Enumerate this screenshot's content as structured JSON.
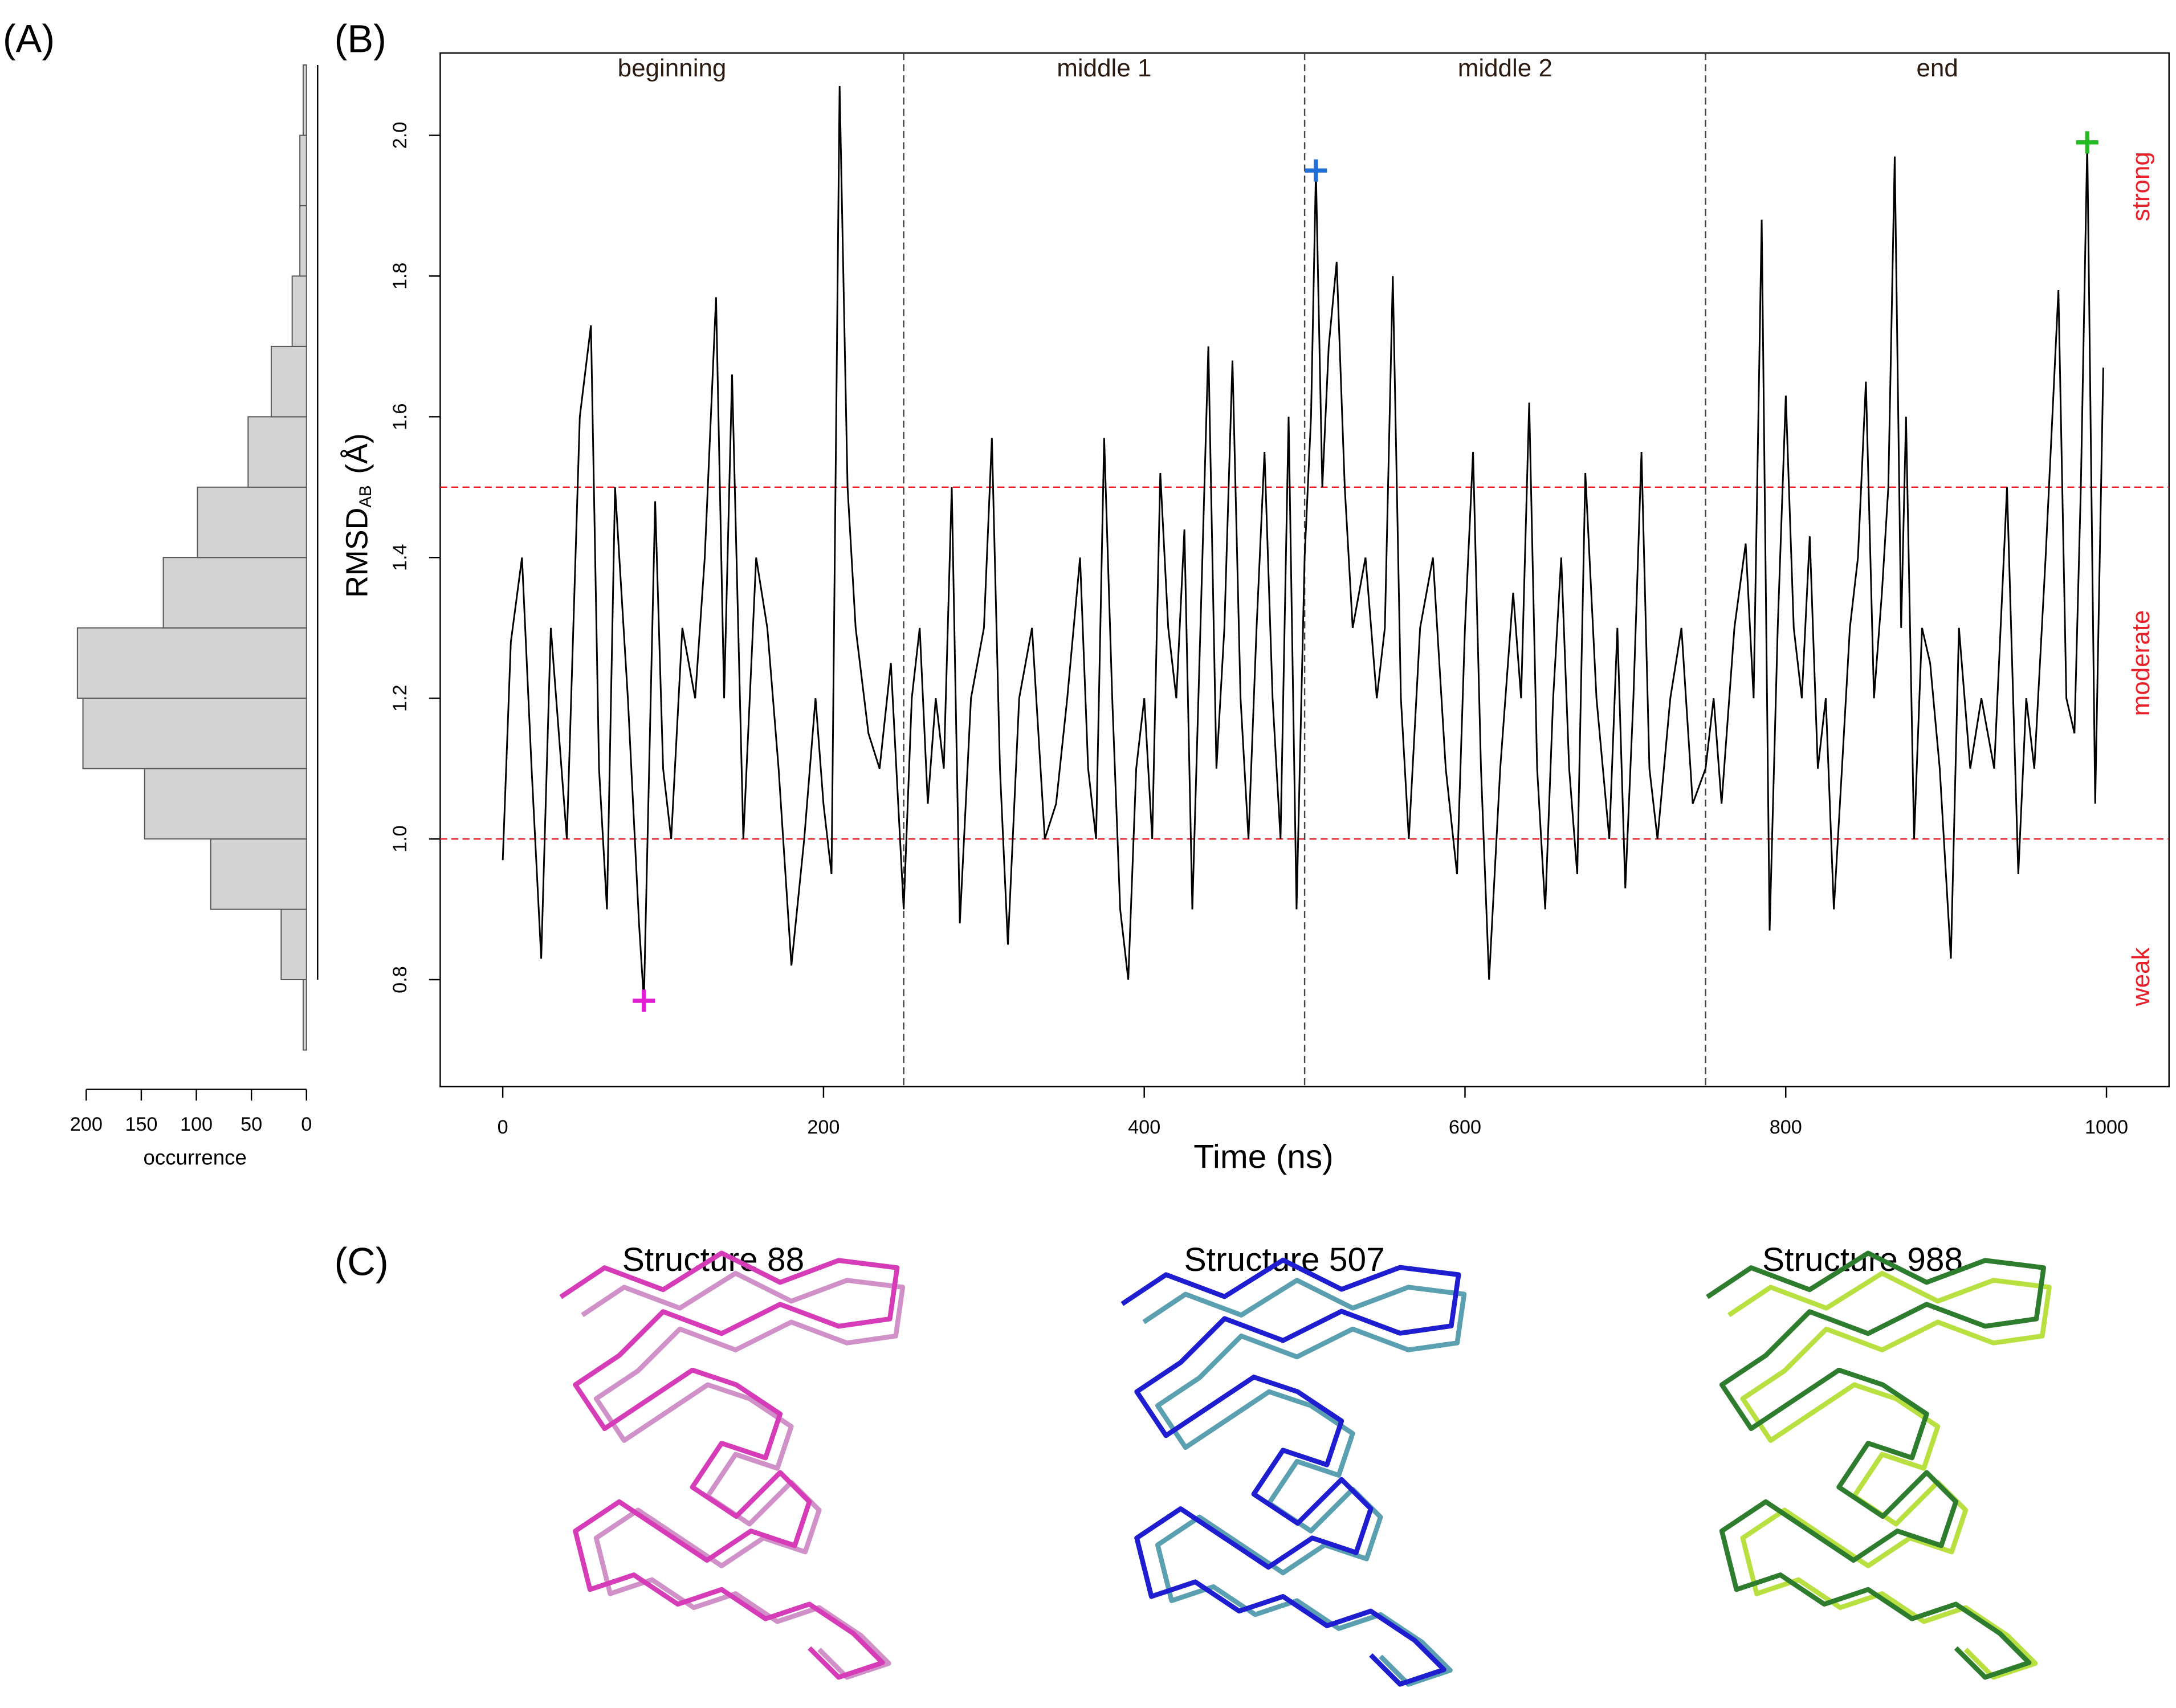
{
  "panels": [
    "(A)",
    "(B)",
    "(C)"
  ],
  "structures": [
    {
      "title": "Structure 88"
    },
    {
      "title": "Structure 507"
    },
    {
      "title": "Structure 988"
    }
  ],
  "chart_data": [
    {
      "type": "histogram",
      "orientation": "horizontal",
      "color": "#d3d3d3",
      "bins": [
        0.7,
        0.8,
        0.9,
        1.0,
        1.1,
        1.2,
        1.3,
        1.4,
        1.5,
        1.6,
        1.7,
        1.8,
        1.9,
        2.0,
        2.1
      ],
      "counts": [
        3,
        23,
        87,
        147,
        203,
        208,
        130,
        99,
        53,
        32,
        13,
        6,
        6,
        3
      ],
      "xlabel": "occurrence",
      "xlim": [
        0,
        210
      ],
      "xticks": [
        200,
        150,
        100,
        50,
        0
      ],
      "ylim": [
        0.648,
        2.117
      ]
    },
    {
      "type": "line",
      "color": "#000000",
      "xlabel": "Time (ns)",
      "ylabel": "RMSD",
      "ylabel_subscript": "AB",
      "ylabel_unit": "(Å)",
      "xlim": [
        -39,
        1039
      ],
      "ylim": [
        0.648,
        2.117
      ],
      "xticks": [
        0,
        200,
        400,
        600,
        800,
        1000
      ],
      "yticks": [
        0.8,
        {
          "value": 1,
          "label": "1.0"
        },
        1.2,
        1.4,
        1.6,
        1.8,
        {
          "value": 2,
          "label": "2.0"
        }
      ],
      "hlines": [
        1.0,
        1.5
      ],
      "hline_color": "#e8202a",
      "vlines": [
        250,
        500,
        750
      ],
      "sections": [
        "beginning",
        "middle 1",
        "middle 2",
        "end"
      ],
      "regions": [
        "weak",
        "moderate",
        "strong"
      ],
      "region_color": "#e8202a",
      "markers": [
        {
          "x": 88,
          "y": 0.77,
          "color": "#e020d0"
        },
        {
          "x": 507,
          "y": 1.95,
          "color": "#1e6fd8"
        },
        {
          "x": 988,
          "y": 1.99,
          "color": "#22bb22"
        }
      ],
      "x": [
        0,
        5,
        12,
        18,
        24,
        30,
        40,
        48,
        55,
        60,
        65,
        70,
        78,
        85,
        88,
        95,
        100,
        105,
        112,
        120,
        126,
        133,
        138,
        143,
        150,
        158,
        165,
        172,
        180,
        188,
        195,
        200,
        205,
        210,
        215,
        220,
        228,
        235,
        242,
        250,
        255,
        260,
        265,
        270,
        275,
        280,
        285,
        292,
        300,
        305,
        310,
        315,
        322,
        330,
        338,
        345,
        352,
        360,
        365,
        370,
        375,
        380,
        385,
        390,
        395,
        400,
        405,
        410,
        415,
        420,
        425,
        430,
        435,
        440,
        445,
        450,
        455,
        460,
        465,
        470,
        475,
        480,
        485,
        490,
        495,
        500,
        504,
        507,
        511,
        515,
        520,
        525,
        530,
        538,
        545,
        550,
        555,
        560,
        565,
        572,
        580,
        588,
        595,
        600,
        605,
        610,
        615,
        622,
        630,
        635,
        640,
        645,
        650,
        655,
        660,
        665,
        670,
        675,
        682,
        690,
        695,
        700,
        705,
        710,
        715,
        720,
        728,
        735,
        742,
        750,
        755,
        760,
        768,
        775,
        780,
        785,
        790,
        795,
        800,
        805,
        810,
        815,
        820,
        825,
        830,
        835,
        840,
        845,
        850,
        855,
        860,
        864,
        868,
        872,
        875,
        880,
        885,
        890,
        896,
        903,
        908,
        915,
        922,
        930,
        938,
        945,
        950,
        955,
        962,
        970,
        975,
        980,
        984,
        988,
        993,
        998
      ],
      "values": [
        0.97,
        1.28,
        1.4,
        1.1,
        0.83,
        1.3,
        1.0,
        1.6,
        1.73,
        1.1,
        0.9,
        1.5,
        1.2,
        0.88,
        0.77,
        1.48,
        1.1,
        1.0,
        1.3,
        1.2,
        1.4,
        1.77,
        1.2,
        1.66,
        1.0,
        1.4,
        1.3,
        1.1,
        0.82,
        1.0,
        1.2,
        1.05,
        0.95,
        2.07,
        1.5,
        1.3,
        1.15,
        1.1,
        1.25,
        0.9,
        1.2,
        1.3,
        1.05,
        1.2,
        1.1,
        1.5,
        0.88,
        1.2,
        1.3,
        1.57,
        1.1,
        0.85,
        1.2,
        1.3,
        1.0,
        1.05,
        1.2,
        1.4,
        1.1,
        1.0,
        1.57,
        1.2,
        0.9,
        0.8,
        1.1,
        1.2,
        1.0,
        1.52,
        1.3,
        1.2,
        1.44,
        0.9,
        1.3,
        1.7,
        1.1,
        1.3,
        1.68,
        1.2,
        1.0,
        1.3,
        1.55,
        1.2,
        1.0,
        1.6,
        0.9,
        1.4,
        1.6,
        1.95,
        1.5,
        1.7,
        1.82,
        1.5,
        1.3,
        1.4,
        1.2,
        1.3,
        1.8,
        1.2,
        1.0,
        1.3,
        1.4,
        1.1,
        0.95,
        1.3,
        1.55,
        1.1,
        0.8,
        1.1,
        1.35,
        1.2,
        1.62,
        1.1,
        0.9,
        1.2,
        1.4,
        1.1,
        0.95,
        1.52,
        1.2,
        1.0,
        1.3,
        0.93,
        1.2,
        1.55,
        1.1,
        1.0,
        1.2,
        1.3,
        1.05,
        1.1,
        1.2,
        1.05,
        1.3,
        1.42,
        1.2,
        1.88,
        0.87,
        1.3,
        1.63,
        1.3,
        1.2,
        1.43,
        1.1,
        1.2,
        0.9,
        1.1,
        1.3,
        1.4,
        1.65,
        1.2,
        1.35,
        1.5,
        1.97,
        1.3,
        1.6,
        1.0,
        1.3,
        1.25,
        1.1,
        0.83,
        1.3,
        1.1,
        1.2,
        1.1,
        1.5,
        0.95,
        1.2,
        1.1,
        1.4,
        1.78,
        1.2,
        1.15,
        1.5,
        1.99,
        1.05,
        1.67
      ]
    }
  ]
}
